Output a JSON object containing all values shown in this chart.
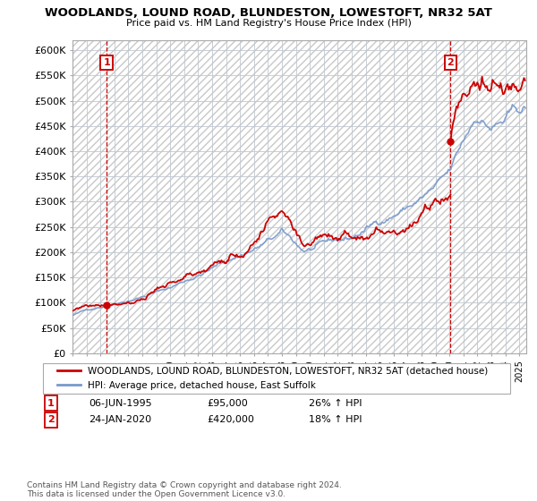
{
  "title": "WOODLANDS, LOUND ROAD, BLUNDESTON, LOWESTOFT, NR32 5AT",
  "subtitle": "Price paid vs. HM Land Registry's House Price Index (HPI)",
  "legend_line1": "WOODLANDS, LOUND ROAD, BLUNDESTON, LOWESTOFT, NR32 5AT (detached house)",
  "legend_line2": "HPI: Average price, detached house, East Suffolk",
  "ann1_label": "1",
  "ann1_date": "06-JUN-1995",
  "ann1_price": "£95,000",
  "ann1_hpi": "26% ↑ HPI",
  "ann1_x": 1995.44,
  "ann1_y": 95000,
  "ann2_label": "2",
  "ann2_date": "24-JAN-2020",
  "ann2_price": "£420,000",
  "ann2_hpi": "18% ↑ HPI",
  "ann2_x": 2020.07,
  "ann2_y": 420000,
  "ylabel_ticks": [
    "£0",
    "£50K",
    "£100K",
    "£150K",
    "£200K",
    "£250K",
    "£300K",
    "£350K",
    "£400K",
    "£450K",
    "£500K",
    "£550K",
    "£600K"
  ],
  "ytick_values": [
    0,
    50000,
    100000,
    150000,
    200000,
    250000,
    300000,
    350000,
    400000,
    450000,
    500000,
    550000,
    600000
  ],
  "xlim": [
    1993.0,
    2025.5
  ],
  "ylim": [
    0,
    620000
  ],
  "price_line_color": "#cc0000",
  "hpi_line_color": "#7799cc",
  "background_color": "#ffffff",
  "footer": "Contains HM Land Registry data © Crown copyright and database right 2024.\nThis data is licensed under the Open Government Licence v3.0."
}
